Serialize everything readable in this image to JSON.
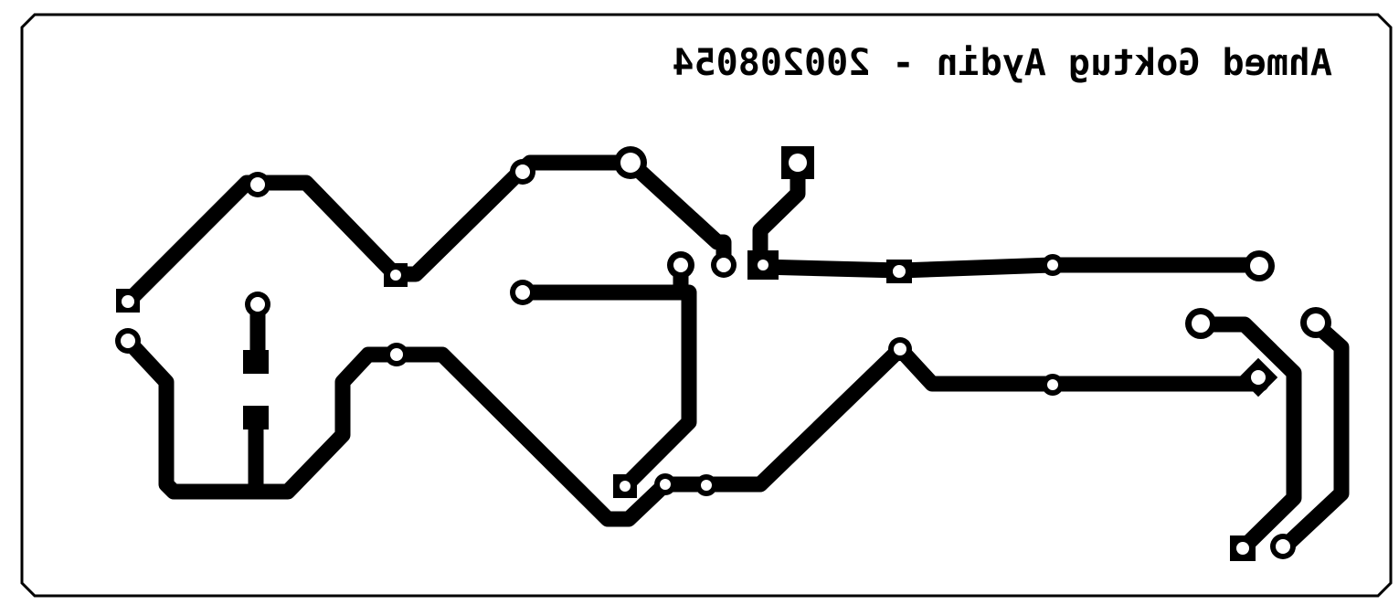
{
  "board": {
    "title": "Ahmed Goktug Aydin - 20020805",
    "title_style": "mirrored"
  },
  "colors": {
    "background": "#ffffff",
    "copper": "#000000",
    "drill": "#ffffff",
    "outline": "#000000"
  }
}
